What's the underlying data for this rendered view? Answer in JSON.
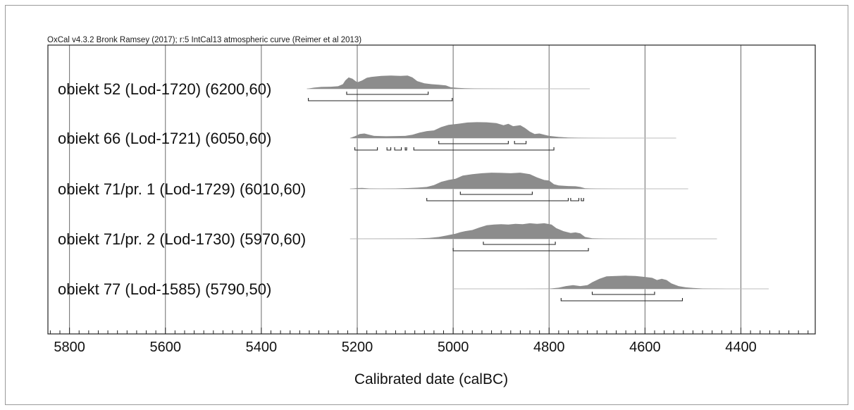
{
  "credit": "OxCal v4.3.2 Bronk Ramsey (2017); r:5 IntCal13 atmospheric curve (Reimer et al 2013)",
  "chart_data": {
    "type": "area",
    "xlabel": "Calibrated date (calBC)",
    "xlim": [
      5845,
      4245
    ],
    "xticks": [
      5800,
      5600,
      5400,
      5200,
      5000,
      4800,
      4600,
      4400
    ],
    "xtick_labels": [
      "5800",
      "5600",
      "5400",
      "5200",
      "5000",
      "4800",
      "4600",
      "4400"
    ],
    "grid": true,
    "fill_color": "#8c8c8c",
    "series": [
      {
        "name": "obiekt 52 (Lod-1720) (6200,60)",
        "line_range": [
          5305,
          4715
        ],
        "density": [
          [
            5305,
            0
          ],
          [
            5290,
            0.06
          ],
          [
            5275,
            0.1
          ],
          [
            5255,
            0.11
          ],
          [
            5240,
            0.14
          ],
          [
            5230,
            0.25
          ],
          [
            5225,
            0.45
          ],
          [
            5218,
            0.62
          ],
          [
            5210,
            0.55
          ],
          [
            5200,
            0.35
          ],
          [
            5190,
            0.45
          ],
          [
            5180,
            0.6
          ],
          [
            5170,
            0.65
          ],
          [
            5150,
            0.7
          ],
          [
            5130,
            0.72
          ],
          [
            5110,
            0.7
          ],
          [
            5095,
            0.72
          ],
          [
            5085,
            0.62
          ],
          [
            5075,
            0.42
          ],
          [
            5060,
            0.3
          ],
          [
            5045,
            0.25
          ],
          [
            5030,
            0.22
          ],
          [
            5015,
            0.18
          ],
          [
            5005,
            0.08
          ],
          [
            4990,
            0.05
          ],
          [
            4975,
            0.03
          ],
          [
            4950,
            0.015
          ],
          [
            4900,
            0.005
          ],
          [
            4850,
            0
          ],
          [
            4715,
            0
          ]
        ],
        "range_68": [
          [
            5222,
            5052
          ]
        ],
        "range_95": [
          [
            5302,
            5002
          ]
        ]
      },
      {
        "name": "obiekt 66 (Lod-1721) (6050,60)",
        "line_range": [
          5215,
          4535
        ],
        "density": [
          [
            5215,
            0
          ],
          [
            5205,
            0.1
          ],
          [
            5195,
            0.22
          ],
          [
            5185,
            0.25
          ],
          [
            5175,
            0.18
          ],
          [
            5165,
            0.12
          ],
          [
            5140,
            0.1
          ],
          [
            5120,
            0.11
          ],
          [
            5100,
            0.12
          ],
          [
            5085,
            0.18
          ],
          [
            5070,
            0.3
          ],
          [
            5055,
            0.38
          ],
          [
            5040,
            0.42
          ],
          [
            5025,
            0.6
          ],
          [
            5010,
            0.72
          ],
          [
            4990,
            0.78
          ],
          [
            4970,
            0.85
          ],
          [
            4950,
            0.87
          ],
          [
            4930,
            0.86
          ],
          [
            4910,
            0.82
          ],
          [
            4895,
            0.7
          ],
          [
            4885,
            0.78
          ],
          [
            4875,
            0.65
          ],
          [
            4860,
            0.7
          ],
          [
            4850,
            0.55
          ],
          [
            4840,
            0.35
          ],
          [
            4830,
            0.22
          ],
          [
            4820,
            0.25
          ],
          [
            4810,
            0.18
          ],
          [
            4800,
            0.12
          ],
          [
            4780,
            0.06
          ],
          [
            4760,
            0.03
          ],
          [
            4720,
            0.01
          ],
          [
            4680,
            0
          ],
          [
            4535,
            0
          ]
        ],
        "range_68": [
          [
            5030,
            4885
          ],
          [
            4872,
            4848
          ]
        ],
        "range_95": [
          [
            5205,
            5158
          ],
          [
            5138,
            5130
          ],
          [
            5122,
            5108
          ],
          [
            5100,
            5097
          ],
          [
            5082,
            4790
          ]
        ]
      },
      {
        "name": "obiekt 71/pr. 1 (Lod-1729) (6010,60)",
        "line_range": [
          5215,
          4510
        ],
        "density": [
          [
            5215,
            0
          ],
          [
            5200,
            0.04
          ],
          [
            5190,
            0.05
          ],
          [
            5175,
            0.02
          ],
          [
            5150,
            0.01
          ],
          [
            5120,
            0.02
          ],
          [
            5095,
            0.04
          ],
          [
            5075,
            0.06
          ],
          [
            5055,
            0.1
          ],
          [
            5040,
            0.2
          ],
          [
            5025,
            0.38
          ],
          [
            5010,
            0.48
          ],
          [
            4995,
            0.55
          ],
          [
            4980,
            0.72
          ],
          [
            4960,
            0.8
          ],
          [
            4940,
            0.85
          ],
          [
            4920,
            0.88
          ],
          [
            4900,
            0.87
          ],
          [
            4880,
            0.85
          ],
          [
            4860,
            0.88
          ],
          [
            4840,
            0.8
          ],
          [
            4825,
            0.62
          ],
          [
            4810,
            0.48
          ],
          [
            4800,
            0.45
          ],
          [
            4790,
            0.25
          ],
          [
            4780,
            0.18
          ],
          [
            4760,
            0.15
          ],
          [
            4745,
            0.14
          ],
          [
            4735,
            0.1
          ],
          [
            4725,
            0.03
          ],
          [
            4700,
            0.01
          ],
          [
            4650,
            0
          ],
          [
            4510,
            0
          ]
        ],
        "range_68": [
          [
            4985,
            4835
          ]
        ],
        "range_95": [
          [
            5055,
            4760
          ],
          [
            4755,
            4738
          ],
          [
            4733,
            4728
          ]
        ]
      },
      {
        "name": "obiekt 71/pr. 2 (Lod-1730) (5970,60)",
        "line_range": [
          5215,
          4450
        ],
        "density": [
          [
            5215,
            0
          ],
          [
            5190,
            0.005
          ],
          [
            5120,
            0.01
          ],
          [
            5080,
            0.02
          ],
          [
            5050,
            0.05
          ],
          [
            5030,
            0.1
          ],
          [
            5010,
            0.2
          ],
          [
            4995,
            0.28
          ],
          [
            4985,
            0.36
          ],
          [
            4975,
            0.42
          ],
          [
            4960,
            0.48
          ],
          [
            4945,
            0.62
          ],
          [
            4930,
            0.74
          ],
          [
            4915,
            0.78
          ],
          [
            4900,
            0.8
          ],
          [
            4885,
            0.78
          ],
          [
            4870,
            0.82
          ],
          [
            4855,
            0.8
          ],
          [
            4840,
            0.85
          ],
          [
            4825,
            0.82
          ],
          [
            4810,
            0.85
          ],
          [
            4795,
            0.78
          ],
          [
            4785,
            0.58
          ],
          [
            4770,
            0.42
          ],
          [
            4755,
            0.32
          ],
          [
            4745,
            0.35
          ],
          [
            4735,
            0.3
          ],
          [
            4725,
            0.1
          ],
          [
            4710,
            0.03
          ],
          [
            4680,
            0.01
          ],
          [
            4600,
            0
          ],
          [
            4450,
            0
          ]
        ],
        "range_68": [
          [
            4937,
            4787
          ]
        ],
        "range_95": [
          [
            5000,
            4718
          ]
        ]
      },
      {
        "name": "obiekt 77 (Lod-1585) (5790,50)",
        "line_range": [
          5000,
          4342
        ],
        "density": [
          [
            4850,
            0
          ],
          [
            4800,
            0.01
          ],
          [
            4780,
            0.06
          ],
          [
            4765,
            0.15
          ],
          [
            4750,
            0.2
          ],
          [
            4735,
            0.15
          ],
          [
            4720,
            0.2
          ],
          [
            4710,
            0.36
          ],
          [
            4695,
            0.55
          ],
          [
            4680,
            0.68
          ],
          [
            4660,
            0.7
          ],
          [
            4640,
            0.72
          ],
          [
            4620,
            0.7
          ],
          [
            4600,
            0.65
          ],
          [
            4585,
            0.6
          ],
          [
            4575,
            0.48
          ],
          [
            4565,
            0.55
          ],
          [
            4555,
            0.48
          ],
          [
            4545,
            0.3
          ],
          [
            4530,
            0.15
          ],
          [
            4515,
            0.08
          ],
          [
            4500,
            0.05
          ],
          [
            4480,
            0.02
          ],
          [
            4460,
            0.01
          ],
          [
            4430,
            0
          ],
          [
            4342,
            0
          ]
        ],
        "range_68": [
          [
            4710,
            4580
          ]
        ],
        "range_95": [
          [
            4775,
            4522
          ]
        ]
      }
    ]
  }
}
